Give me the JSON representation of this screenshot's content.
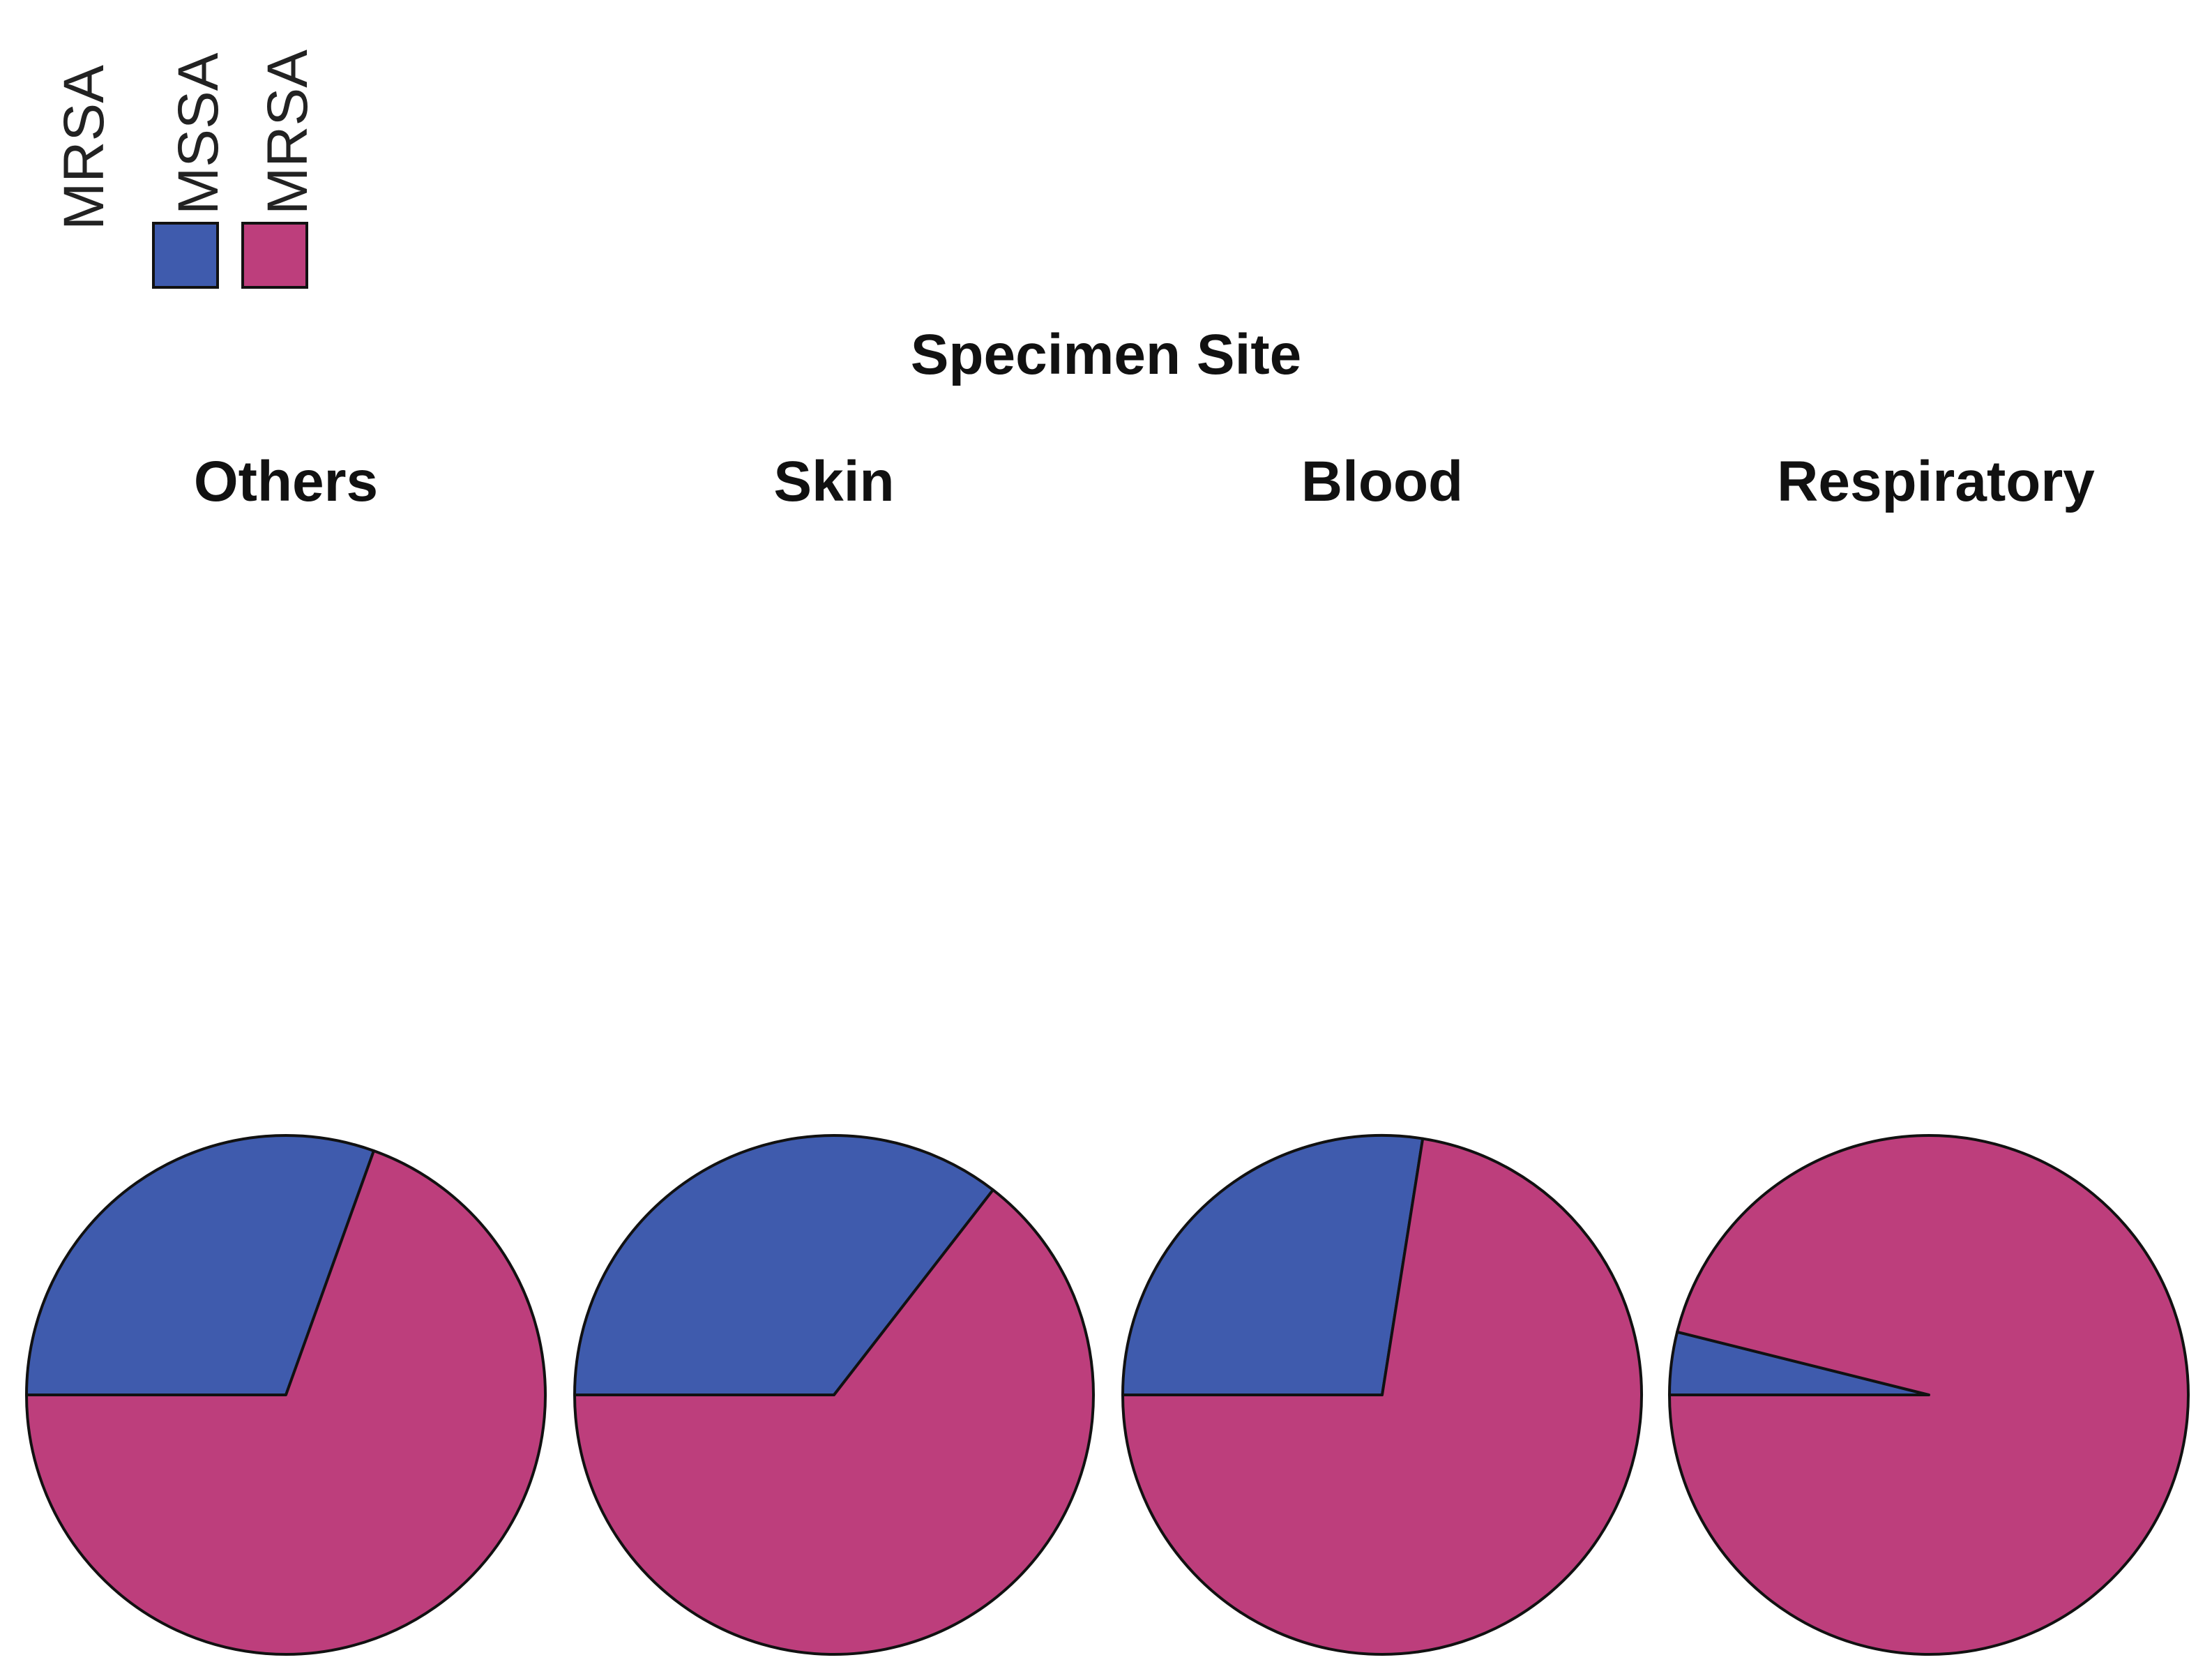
{
  "chart_data": {
    "type": "pie",
    "title": "Specimen Site",
    "legend": {
      "title": "MRSA",
      "placement": "top-left",
      "entries": [
        {
          "label": "MSSA",
          "color": "#3f5bad"
        },
        {
          "label": "MRSA",
          "color": "#bd3e7c"
        }
      ]
    },
    "series_names": [
      "MSSA",
      "MRSA"
    ],
    "panels": [
      {
        "name": "Others",
        "values": [
          30.5,
          69.5
        ]
      },
      {
        "name": "Skin",
        "values": [
          35.5,
          64.5
        ]
      },
      {
        "name": "Blood",
        "values": [
          27.5,
          72.5
        ]
      },
      {
        "name": "Respiratory",
        "values": [
          3.9,
          96.1
        ]
      }
    ],
    "start": "9 o'clock",
    "direction": "clockwise"
  }
}
